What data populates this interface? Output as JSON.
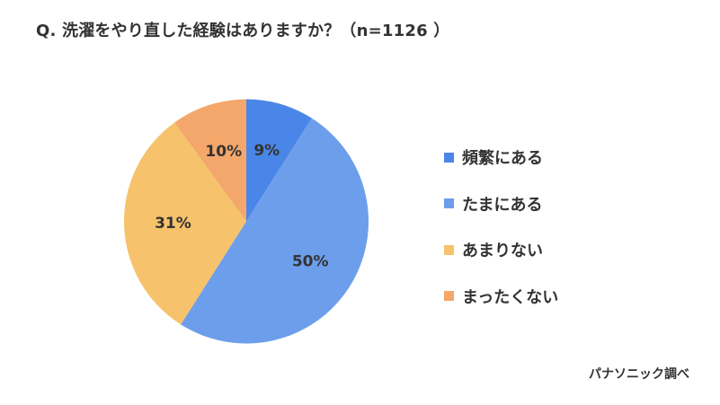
{
  "title": "Q. 洗濯をやり直した経験はありますか？（n=1126 ）",
  "source": "パナソニック調べ",
  "chart_data": {
    "type": "pie",
    "title": "Q. 洗濯をやり直した経験はありますか？（n=1126 ）",
    "categories": [
      "頻繁にある",
      "たまにある",
      "あまりない",
      "まったくない"
    ],
    "values": [
      9,
      50,
      31,
      10
    ],
    "value_labels": [
      "9%",
      "50%",
      "31%",
      "10%"
    ],
    "colors": [
      "#4a86e8",
      "#6d9eeb",
      "#f6c26b",
      "#f4a76b"
    ],
    "legend_position": "right",
    "start_angle": "12 o'clock",
    "direction": "clockwise",
    "n": 1126
  }
}
